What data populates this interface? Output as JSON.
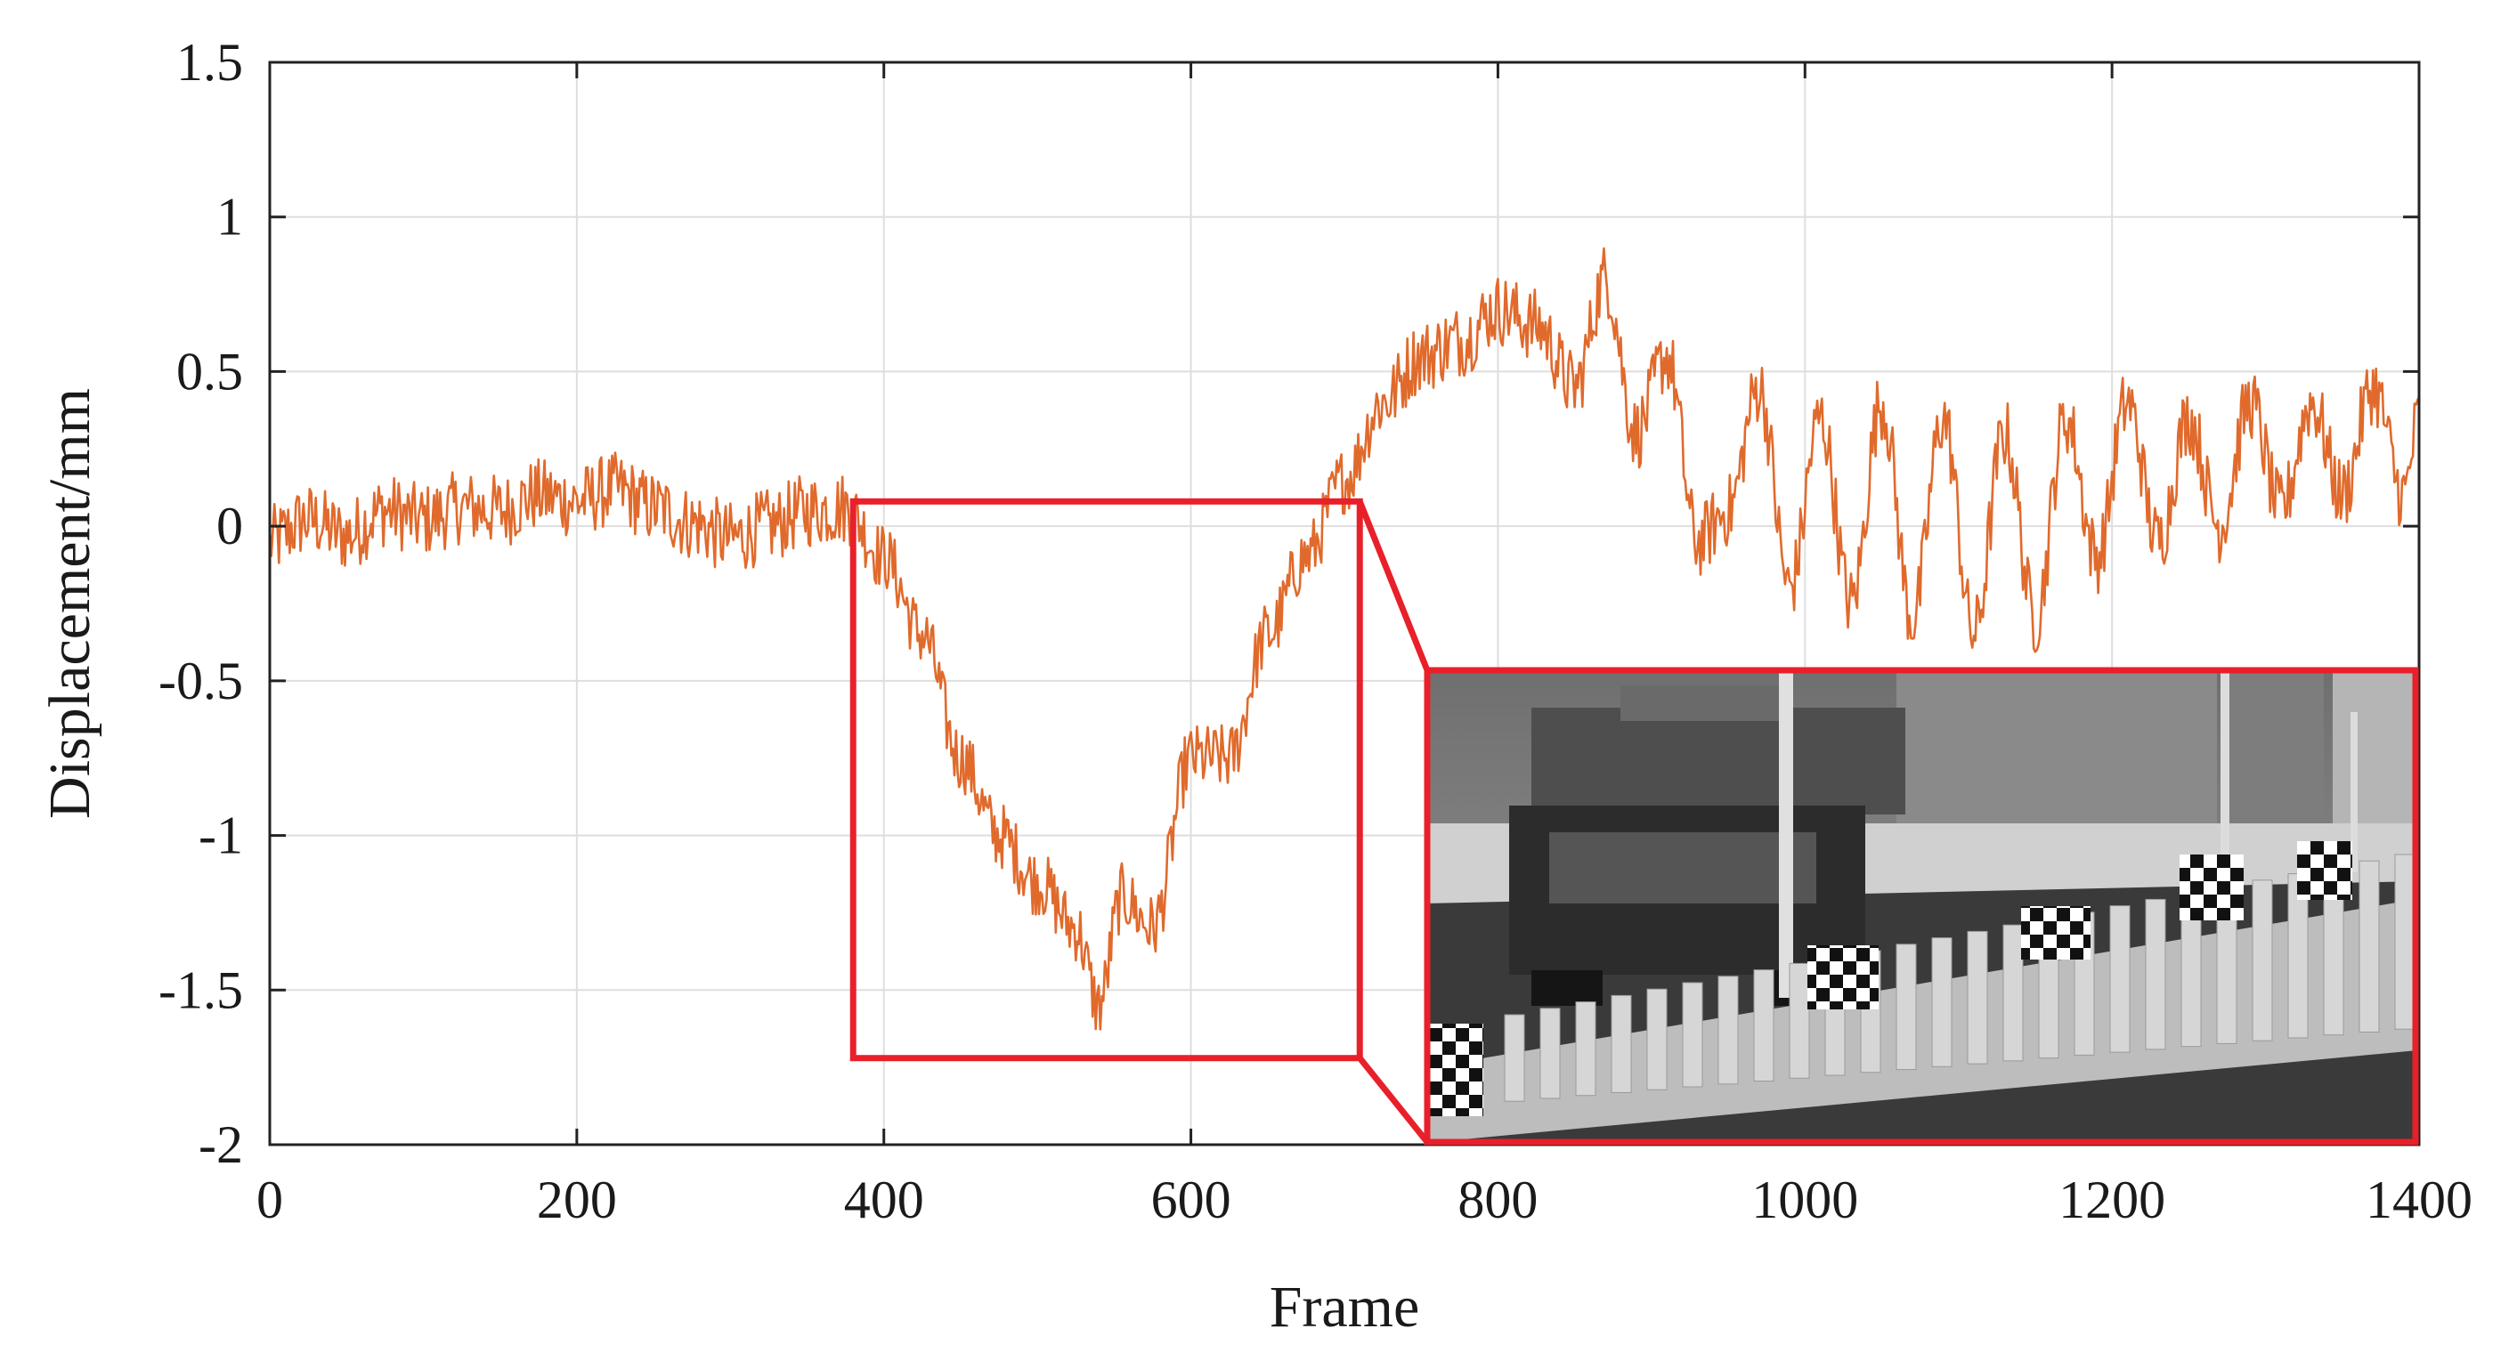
{
  "chart_data": {
    "type": "line",
    "xlabel": "Frame",
    "ylabel": "Displacement/mm",
    "xlim": [
      0,
      1400
    ],
    "ylim": [
      -2,
      1.5
    ],
    "xticks": [
      "0",
      "200",
      "400",
      "600",
      "800",
      "1000",
      "1200",
      "1400"
    ],
    "yticks": [
      "1.5",
      "1",
      "0.5",
      "0",
      "-0.5",
      "-1",
      "-1.5",
      "-2"
    ],
    "grid": true,
    "series": [
      {
        "color": "#e06a2c",
        "x": [
          0,
          25,
          50,
          75,
          100,
          125,
          150,
          175,
          200,
          225,
          250,
          275,
          300,
          325,
          350,
          375,
          400,
          425,
          450,
          475,
          500,
          525,
          540,
          555,
          575,
          600,
          625,
          650,
          675,
          700,
          725,
          750,
          775,
          800,
          825,
          850,
          870,
          890,
          910,
          930,
          950,
          970,
          990,
          1010,
          1030,
          1050,
          1070,
          1090,
          1110,
          1130,
          1150,
          1170,
          1190,
          1210,
          1230,
          1250,
          1270,
          1290,
          1310,
          1330,
          1350,
          1370,
          1390,
          1400
        ],
        "y": [
          -0.05,
          0.02,
          -0.03,
          0.05,
          0.02,
          0.06,
          0.05,
          0.1,
          0.08,
          0.12,
          0.06,
          0.01,
          -0.04,
          0.0,
          0.05,
          0.06,
          -0.1,
          -0.35,
          -0.75,
          -1.0,
          -1.15,
          -1.3,
          -1.55,
          -1.2,
          -1.3,
          -0.75,
          -0.75,
          -0.35,
          -0.1,
          0.15,
          0.4,
          0.55,
          0.6,
          0.7,
          0.65,
          0.45,
          0.8,
          0.3,
          0.55,
          -0.05,
          0.05,
          0.45,
          -0.2,
          0.35,
          -0.25,
          0.4,
          -0.3,
          0.35,
          -0.35,
          0.3,
          -0.3,
          0.35,
          -0.1,
          0.4,
          -0.05,
          0.35,
          0.0,
          0.4,
          0.05,
          0.4,
          0.1,
          0.45,
          0.1,
          0.35
        ]
      }
    ],
    "zoom_box": {
      "x": [
        380,
        710
      ],
      "y": [
        -1.72,
        0.08
      ]
    }
  },
  "inset": {
    "kind": "photo",
    "description_icon": "bridge-photo-icon",
    "frame_color": "#e8202a"
  }
}
